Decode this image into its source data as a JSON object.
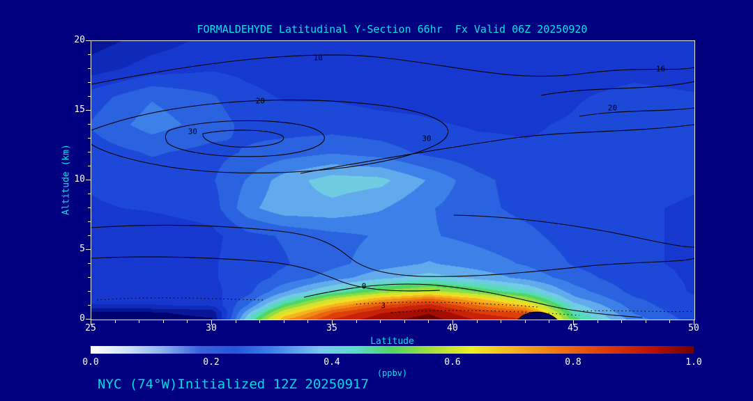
{
  "window": {
    "background": "#000080"
  },
  "header": {
    "title": "FORMALDEHYDE Latitudinal Y-Section 66hr  Fx Valid 06Z 20250920"
  },
  "footer": {
    "label": "NYC (74°W)Initialized 12Z 20250917"
  },
  "chart_data": {
    "type": "heatmap",
    "title": "FORMALDEHYDE Latitudinal Y-Section 66hr  Fx Valid 06Z 20250920",
    "xlabel": "Latitude",
    "ylabel": "Altitude (km)",
    "units_label": "(ppbv)",
    "xlim": [
      25,
      50
    ],
    "ylim": [
      0,
      20
    ],
    "clim": [
      0,
      1
    ],
    "x_ticks": [
      25,
      30,
      35,
      40,
      45,
      50
    ],
    "y_ticks": [
      0,
      5,
      10,
      15,
      20
    ],
    "colorbar_ticks": [
      "0.0",
      "0.2",
      "0.4",
      "0.6",
      "0.8",
      "1.0"
    ],
    "lat": [
      25,
      27.5,
      30,
      31.5,
      33,
      35,
      37,
      39,
      41,
      43,
      45,
      47.5,
      50
    ],
    "alt": [
      0,
      0.5,
      1,
      1.5,
      2,
      3,
      4,
      6,
      8,
      10,
      12,
      14,
      16,
      18,
      20
    ],
    "values_ppbv": [
      [
        0.01,
        0.01,
        0.02,
        0.42,
        0.72,
        0.88,
        0.96,
        1.0,
        0.92,
        0.88,
        0.5,
        0.3,
        0.2
      ],
      [
        0.02,
        0.02,
        0.04,
        0.36,
        0.62,
        0.82,
        0.92,
        0.97,
        0.87,
        0.82,
        0.45,
        0.27,
        0.19
      ],
      [
        0.12,
        0.12,
        0.13,
        0.28,
        0.5,
        0.7,
        0.83,
        0.9,
        0.78,
        0.68,
        0.4,
        0.25,
        0.18
      ],
      [
        0.15,
        0.15,
        0.15,
        0.24,
        0.4,
        0.58,
        0.7,
        0.78,
        0.68,
        0.56,
        0.34,
        0.23,
        0.18
      ],
      [
        0.16,
        0.16,
        0.16,
        0.21,
        0.32,
        0.44,
        0.54,
        0.6,
        0.52,
        0.44,
        0.3,
        0.21,
        0.17
      ],
      [
        0.16,
        0.16,
        0.17,
        0.2,
        0.24,
        0.3,
        0.36,
        0.4,
        0.36,
        0.31,
        0.25,
        0.19,
        0.17
      ],
      [
        0.16,
        0.16,
        0.17,
        0.2,
        0.22,
        0.26,
        0.3,
        0.33,
        0.3,
        0.27,
        0.22,
        0.18,
        0.17
      ],
      [
        0.13,
        0.14,
        0.16,
        0.21,
        0.23,
        0.26,
        0.28,
        0.28,
        0.26,
        0.24,
        0.2,
        0.18,
        0.17
      ],
      [
        0.17,
        0.18,
        0.2,
        0.31,
        0.36,
        0.36,
        0.33,
        0.28,
        0.24,
        0.21,
        0.19,
        0.18,
        0.17
      ],
      [
        0.18,
        0.2,
        0.22,
        0.28,
        0.35,
        0.4,
        0.39,
        0.32,
        0.24,
        0.2,
        0.18,
        0.19,
        0.18
      ],
      [
        0.2,
        0.23,
        0.21,
        0.23,
        0.25,
        0.27,
        0.25,
        0.21,
        0.19,
        0.18,
        0.18,
        0.2,
        0.19
      ],
      [
        0.23,
        0.3,
        0.25,
        0.21,
        0.2,
        0.2,
        0.19,
        0.18,
        0.17,
        0.17,
        0.18,
        0.21,
        0.2
      ],
      [
        0.2,
        0.27,
        0.23,
        0.19,
        0.17,
        0.17,
        0.16,
        0.16,
        0.15,
        0.15,
        0.17,
        0.19,
        0.18
      ],
      [
        0.1,
        0.15,
        0.17,
        0.16,
        0.15,
        0.15,
        0.15,
        0.14,
        0.14,
        0.14,
        0.15,
        0.16,
        0.15
      ],
      [
        0.05,
        0.1,
        0.14,
        0.14,
        0.13,
        0.13,
        0.13,
        0.13,
        0.13,
        0.13,
        0.14,
        0.14,
        0.13
      ]
    ],
    "contour_labels": [
      {
        "text": "10",
        "lat": 34.4,
        "alt": 18.8
      },
      {
        "text": "20",
        "lat": 32.0,
        "alt": 15.7
      },
      {
        "text": "30",
        "lat": 29.2,
        "alt": 13.5
      },
      {
        "text": "30",
        "lat": 38.9,
        "alt": 13.0
      },
      {
        "text": "20",
        "lat": 46.6,
        "alt": 15.2
      },
      {
        "text": "16",
        "lat": 48.6,
        "alt": 18.0
      },
      {
        "text": "0",
        "lat": 36.3,
        "alt": 2.4
      },
      {
        "text": "3",
        "lat": 37.1,
        "alt": 1.0
      }
    ],
    "field_colormap": [
      [
        0.0,
        "#00006e"
      ],
      [
        0.08,
        "#0c24b0"
      ],
      [
        0.15,
        "#1638cf"
      ],
      [
        0.22,
        "#2050dc"
      ],
      [
        0.3,
        "#3c80e8"
      ],
      [
        0.38,
        "#7ac4f0"
      ],
      [
        0.44,
        "#5adcc8"
      ],
      [
        0.5,
        "#50d664"
      ],
      [
        0.57,
        "#aadf3c"
      ],
      [
        0.63,
        "#eeee26"
      ],
      [
        0.7,
        "#f5b41e"
      ],
      [
        0.78,
        "#ee7212"
      ],
      [
        0.86,
        "#db380a"
      ],
      [
        0.93,
        "#ba1206"
      ],
      [
        1.0,
        "#6e0000"
      ]
    ],
    "colorbar_colormap": [
      [
        0.0,
        "#ffffff"
      ],
      [
        0.06,
        "#cfe4f6"
      ],
      [
        0.12,
        "#8ab2ec"
      ],
      [
        0.18,
        "#3a62dc"
      ],
      [
        0.24,
        "#2256dc"
      ],
      [
        0.3,
        "#3c80e8"
      ],
      [
        0.38,
        "#7ac4f0"
      ],
      [
        0.44,
        "#5adcc8"
      ],
      [
        0.5,
        "#50d664"
      ],
      [
        0.57,
        "#aadf3c"
      ],
      [
        0.63,
        "#eeee26"
      ],
      [
        0.7,
        "#f5b41e"
      ],
      [
        0.78,
        "#ee7212"
      ],
      [
        0.86,
        "#db380a"
      ],
      [
        0.93,
        "#ba1206"
      ],
      [
        1.0,
        "#6e0000"
      ]
    ]
  }
}
